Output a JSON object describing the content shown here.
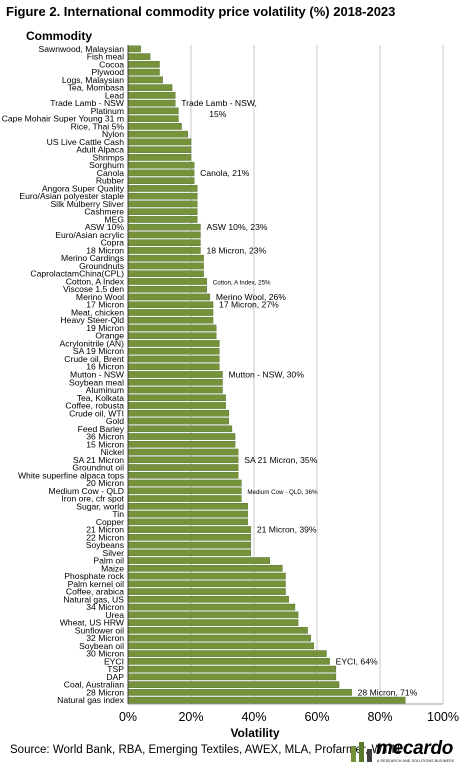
{
  "title": "Figure 2. International commodity price volatility (%)  2018-2023",
  "source": "Source: World Bank, RBA, Emerging Textiles,  AWEX, MLA, Profarmer, WTiN",
  "brand": {
    "name": "mecardo",
    "tagline": "A RESEARCH AND SOLUTIONS BUSINESS"
  },
  "colors": {
    "bar": "#76933c",
    "bar_edge": "#4e6a28",
    "grid": "#c8c8c8",
    "axis": "#404040"
  },
  "chart_data": {
    "type": "bar",
    "orientation": "horizontal",
    "title": "Figure 2. International commodity price volatility (%)  2018-2023",
    "ylabel": "Commodity",
    "xlabel": "Volatility",
    "xlim": [
      0,
      100
    ],
    "xticks": [
      0,
      20,
      40,
      60,
      80,
      100
    ],
    "xtick_labels": [
      "0%",
      "20%",
      "40%",
      "60%",
      "80%",
      "100%"
    ],
    "grid": "vertical gridlines",
    "categories": [
      "Sawnwood, Malaysian",
      "Fish meal",
      "Cocoa",
      "Plywood",
      "Logs, Malaysian",
      "Tea, Mombasa",
      "Lead",
      "Trade Lamb - NSW",
      "Platinum",
      "Cape Mohair Super Young 31 m",
      "Rice, Thai 5%",
      "Nylon",
      "US Live Cattle Cash",
      "Adult Alpaca",
      "Shrimps",
      "Sorghum",
      "Canola",
      "Rubber",
      "Angora Super Quality",
      "Euro/Asian polyester staple",
      "Silk Mulberry Sliver",
      "Cashmere",
      "MEG",
      "ASW 10%",
      "Euro/Asian acrylic",
      "Copra",
      "18 Micron",
      "Merino Cardings",
      "Groundnuts",
      "CaprolactamChina(CPL)",
      "Cotton, A Index",
      "Viscose 1.5 den",
      "Merino Wool",
      "17 Micron",
      "Meat, chicken",
      "Heavy Steer-Qld",
      "19 Micron",
      "Orange",
      "Acrylonitrile (AN)",
      "SA 19 Micron",
      "Crude oil, Brent",
      "16 Micron",
      "Mutton - NSW",
      "Soybean meal",
      "Aluminum",
      "Tea, Kolkata",
      "Coffee, robusta",
      "Crude oil, WTI",
      "Gold",
      "Feed Barley",
      "36 Micron",
      "15 Micron",
      "Nickel",
      "SA 21 Micron",
      "Groundnut oil",
      "White superfine alpaca tops",
      "20 Micron",
      "Medium Cow - QLD",
      "Iron ore, cfr spot",
      "Sugar, world",
      "Tin",
      "Copper",
      "21 Micron",
      "22 Micron",
      "Soybeans",
      "Silver",
      "Palm oil",
      "Maize",
      "Phosphate rock",
      "Palm kernel oil",
      "Coffee, arabica",
      "Natural gas, US",
      "34 Micron",
      "Urea",
      "Wheat, US HRW",
      "Sunflower oil",
      "32 Micron",
      "Soybean oil",
      "30 Micron",
      "EYCI",
      "TSP",
      "DAP",
      "Coal, Australian",
      "28 Micron",
      "Natural gas index"
    ],
    "values": [
      4,
      7,
      10,
      10,
      11,
      14,
      15,
      15,
      16,
      16,
      17,
      19,
      20,
      20,
      20,
      21,
      21,
      21,
      22,
      22,
      22,
      22,
      22,
      23,
      23,
      23,
      23,
      24,
      24,
      24,
      25,
      25,
      26,
      27,
      27,
      27,
      28,
      28,
      29,
      29,
      29,
      29,
      30,
      30,
      30,
      31,
      31,
      32,
      32,
      33,
      34,
      34,
      35,
      35,
      35,
      35,
      36,
      36,
      36,
      38,
      38,
      38,
      39,
      39,
      39,
      39,
      45,
      49,
      50,
      50,
      50,
      51,
      53,
      54,
      54,
      57,
      58,
      59,
      63,
      64,
      66,
      66,
      67,
      71,
      88
    ],
    "annotations": [
      {
        "category": "Trade Lamb - NSW",
        "lines": [
          "Trade Lamb - NSW,",
          "15%"
        ],
        "size": "normal"
      },
      {
        "category": "Canola",
        "lines": [
          "Canola, 21%"
        ],
        "size": "normal"
      },
      {
        "category": "ASW 10%",
        "lines": [
          "ASW 10%, 23%"
        ],
        "size": "normal"
      },
      {
        "category": "18 Micron",
        "lines": [
          "18 Micron, 23%"
        ],
        "size": "normal"
      },
      {
        "category": "Cotton, A Index",
        "lines": [
          "Cotton, A Index, 25%"
        ],
        "size": "small"
      },
      {
        "category": "Merino Wool",
        "lines": [
          "Merino Wool, 26%"
        ],
        "size": "normal"
      },
      {
        "category": "17 Micron",
        "lines": [
          "17 Micron, 27%"
        ],
        "size": "normal"
      },
      {
        "category": "Mutton - NSW",
        "lines": [
          "Mutton - NSW, 30%"
        ],
        "size": "normal"
      },
      {
        "category": "SA 21 Micron",
        "lines": [
          "SA 21 Micron, 35%"
        ],
        "size": "normal"
      },
      {
        "category": "Medium Cow - QLD",
        "lines": [
          "Medium Cow - QLD, 36%"
        ],
        "size": "small"
      },
      {
        "category": "21 Micron",
        "lines": [
          "21 Micron, 39%"
        ],
        "size": "normal"
      },
      {
        "category": "EYCI",
        "lines": [
          "EYCI, 64%"
        ],
        "size": "normal"
      },
      {
        "category": "28 Micron",
        "lines": [
          "28 Micron, 71%"
        ],
        "size": "normal"
      }
    ]
  }
}
